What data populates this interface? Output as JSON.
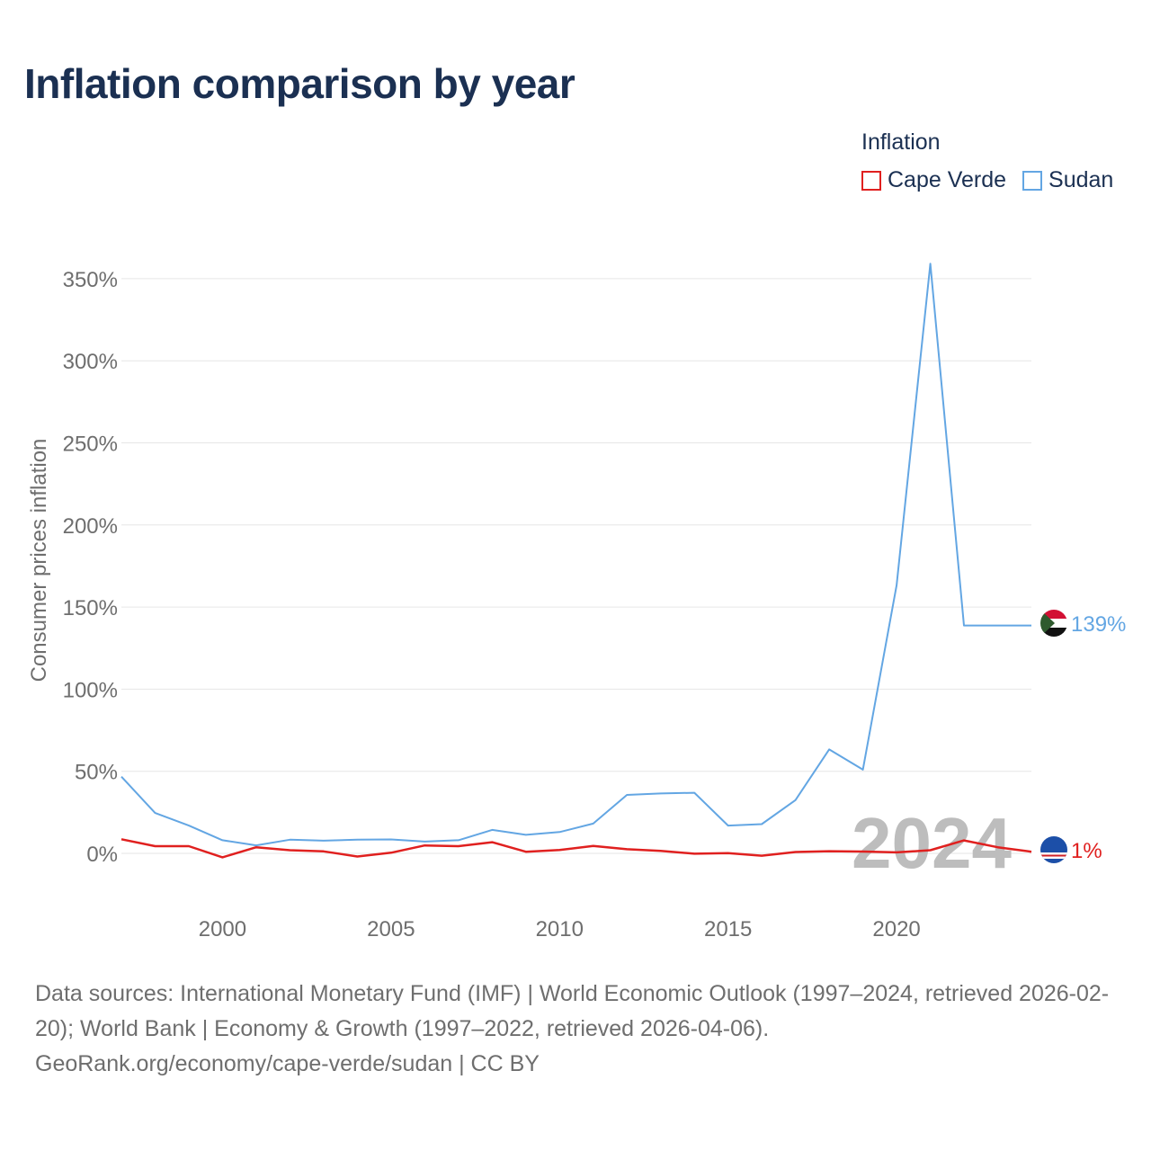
{
  "title": "Inflation comparison by year",
  "legend": {
    "title": "Inflation",
    "items": [
      {
        "label": "Cape Verde",
        "color": "#e0201f"
      },
      {
        "label": "Sudan",
        "color": "#63a6e3"
      }
    ]
  },
  "watermark_year": "2024",
  "source": {
    "line1": "Data sources: International Monetary Fund (IMF) | World Economic Outlook (1997–2024, retrieved 2026-02-20); World Bank | Economy & Growth (1997–2022, retrieved 2026-04-06).",
    "line2": "GeoRank.org/economy/cape-verde/sudan | CC BY"
  },
  "chart_data": {
    "type": "line",
    "title": "Inflation comparison by year",
    "xlabel": "",
    "ylabel": "Consumer prices inflation",
    "xlim": [
      1997,
      2024
    ],
    "ylim": [
      -25,
      375
    ],
    "x_ticks": [
      2000,
      2005,
      2010,
      2015,
      2020
    ],
    "y_ticks": [
      0,
      50,
      100,
      150,
      200,
      250,
      300,
      350
    ],
    "y_tick_labels": [
      "0%",
      "50%",
      "100%",
      "150%",
      "200%",
      "250%",
      "300%",
      "350%"
    ],
    "grid": true,
    "legend_position": "top-right",
    "x": [
      1997,
      1998,
      1999,
      2000,
      2001,
      2002,
      2003,
      2004,
      2005,
      2006,
      2007,
      2008,
      2009,
      2010,
      2011,
      2012,
      2013,
      2014,
      2015,
      2016,
      2017,
      2018,
      2019,
      2020,
      2021,
      2022,
      2023,
      2024
    ],
    "series": [
      {
        "name": "Cape Verde",
        "color": "#e0201f",
        "end_label": "1%",
        "values": [
          8.6,
          4.4,
          4.4,
          -2.4,
          3.7,
          1.9,
          1.2,
          -1.9,
          0.4,
          4.8,
          4.4,
          6.8,
          1.0,
          2.1,
          4.5,
          2.5,
          1.5,
          -0.2,
          0.1,
          -1.4,
          0.8,
          1.3,
          1.1,
          0.6,
          1.9,
          7.9,
          3.7,
          1.0
        ]
      },
      {
        "name": "Sudan",
        "color": "#63a6e3",
        "end_label": "139%",
        "values": [
          46.7,
          24.6,
          16.9,
          8.0,
          4.9,
          8.3,
          7.7,
          8.4,
          8.5,
          7.2,
          8.0,
          14.3,
          11.3,
          13.0,
          18.1,
          35.6,
          36.5,
          36.9,
          16.9,
          17.8,
          32.4,
          63.3,
          51.0,
          163.3,
          359.1,
          138.8,
          138.8,
          138.8
        ]
      }
    ]
  }
}
